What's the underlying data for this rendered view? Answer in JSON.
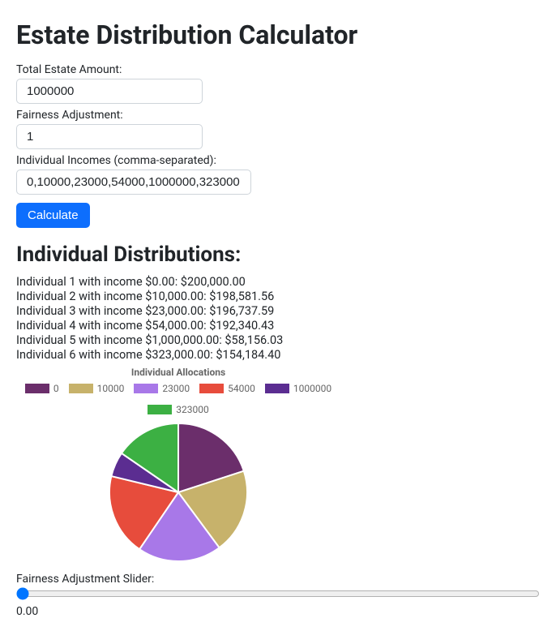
{
  "title": "Estate Distribution Calculator",
  "form": {
    "total_label": "Total Estate Amount:",
    "total_value": "1000000",
    "fairness_label": "Fairness Adjustment:",
    "fairness_value": "1",
    "incomes_label": "Individual Incomes (comma-separated):",
    "incomes_value": "0,10000,23000,54000,1000000,323000",
    "calculate_label": "Calculate"
  },
  "results": {
    "heading": "Individual Distributions:",
    "items": [
      "Individual 1 with income $0.00: $200,000.00",
      "Individual 2 with income $10,000.00: $198,581.56",
      "Individual 3 with income $23,000.00: $196,737.59",
      "Individual 4 with income $54,000.00: $192,340.43",
      "Individual 5 with income $1,000,000.00: $58,156.03",
      "Individual 6 with income $323,000.00: $154,184.40"
    ]
  },
  "chart": {
    "title": "Individual Allocations",
    "type": "pie",
    "labels": [
      "0",
      "10000",
      "23000",
      "54000",
      "1000000",
      "323000"
    ],
    "values": [
      200000,
      198581.56,
      196737.59,
      192340.43,
      58156.03,
      154184.4
    ],
    "colors": [
      "#6b2e6b",
      "#c7b26b",
      "#a878e8",
      "#e74c3c",
      "#5b2d91",
      "#3cb043"
    ],
    "border_color": "#ffffff",
    "border_width": 2,
    "background_color": "#ffffff",
    "title_fontsize": 12,
    "legend_fontsize": 12,
    "legend_swatch_w": 30,
    "legend_swatch_h": 12,
    "start_angle_deg": -90,
    "radius": 85
  },
  "slider": {
    "label": "Fairness Adjustment Slider:",
    "value_text": "0.00",
    "min": 0,
    "max": 100,
    "value": 0
  }
}
